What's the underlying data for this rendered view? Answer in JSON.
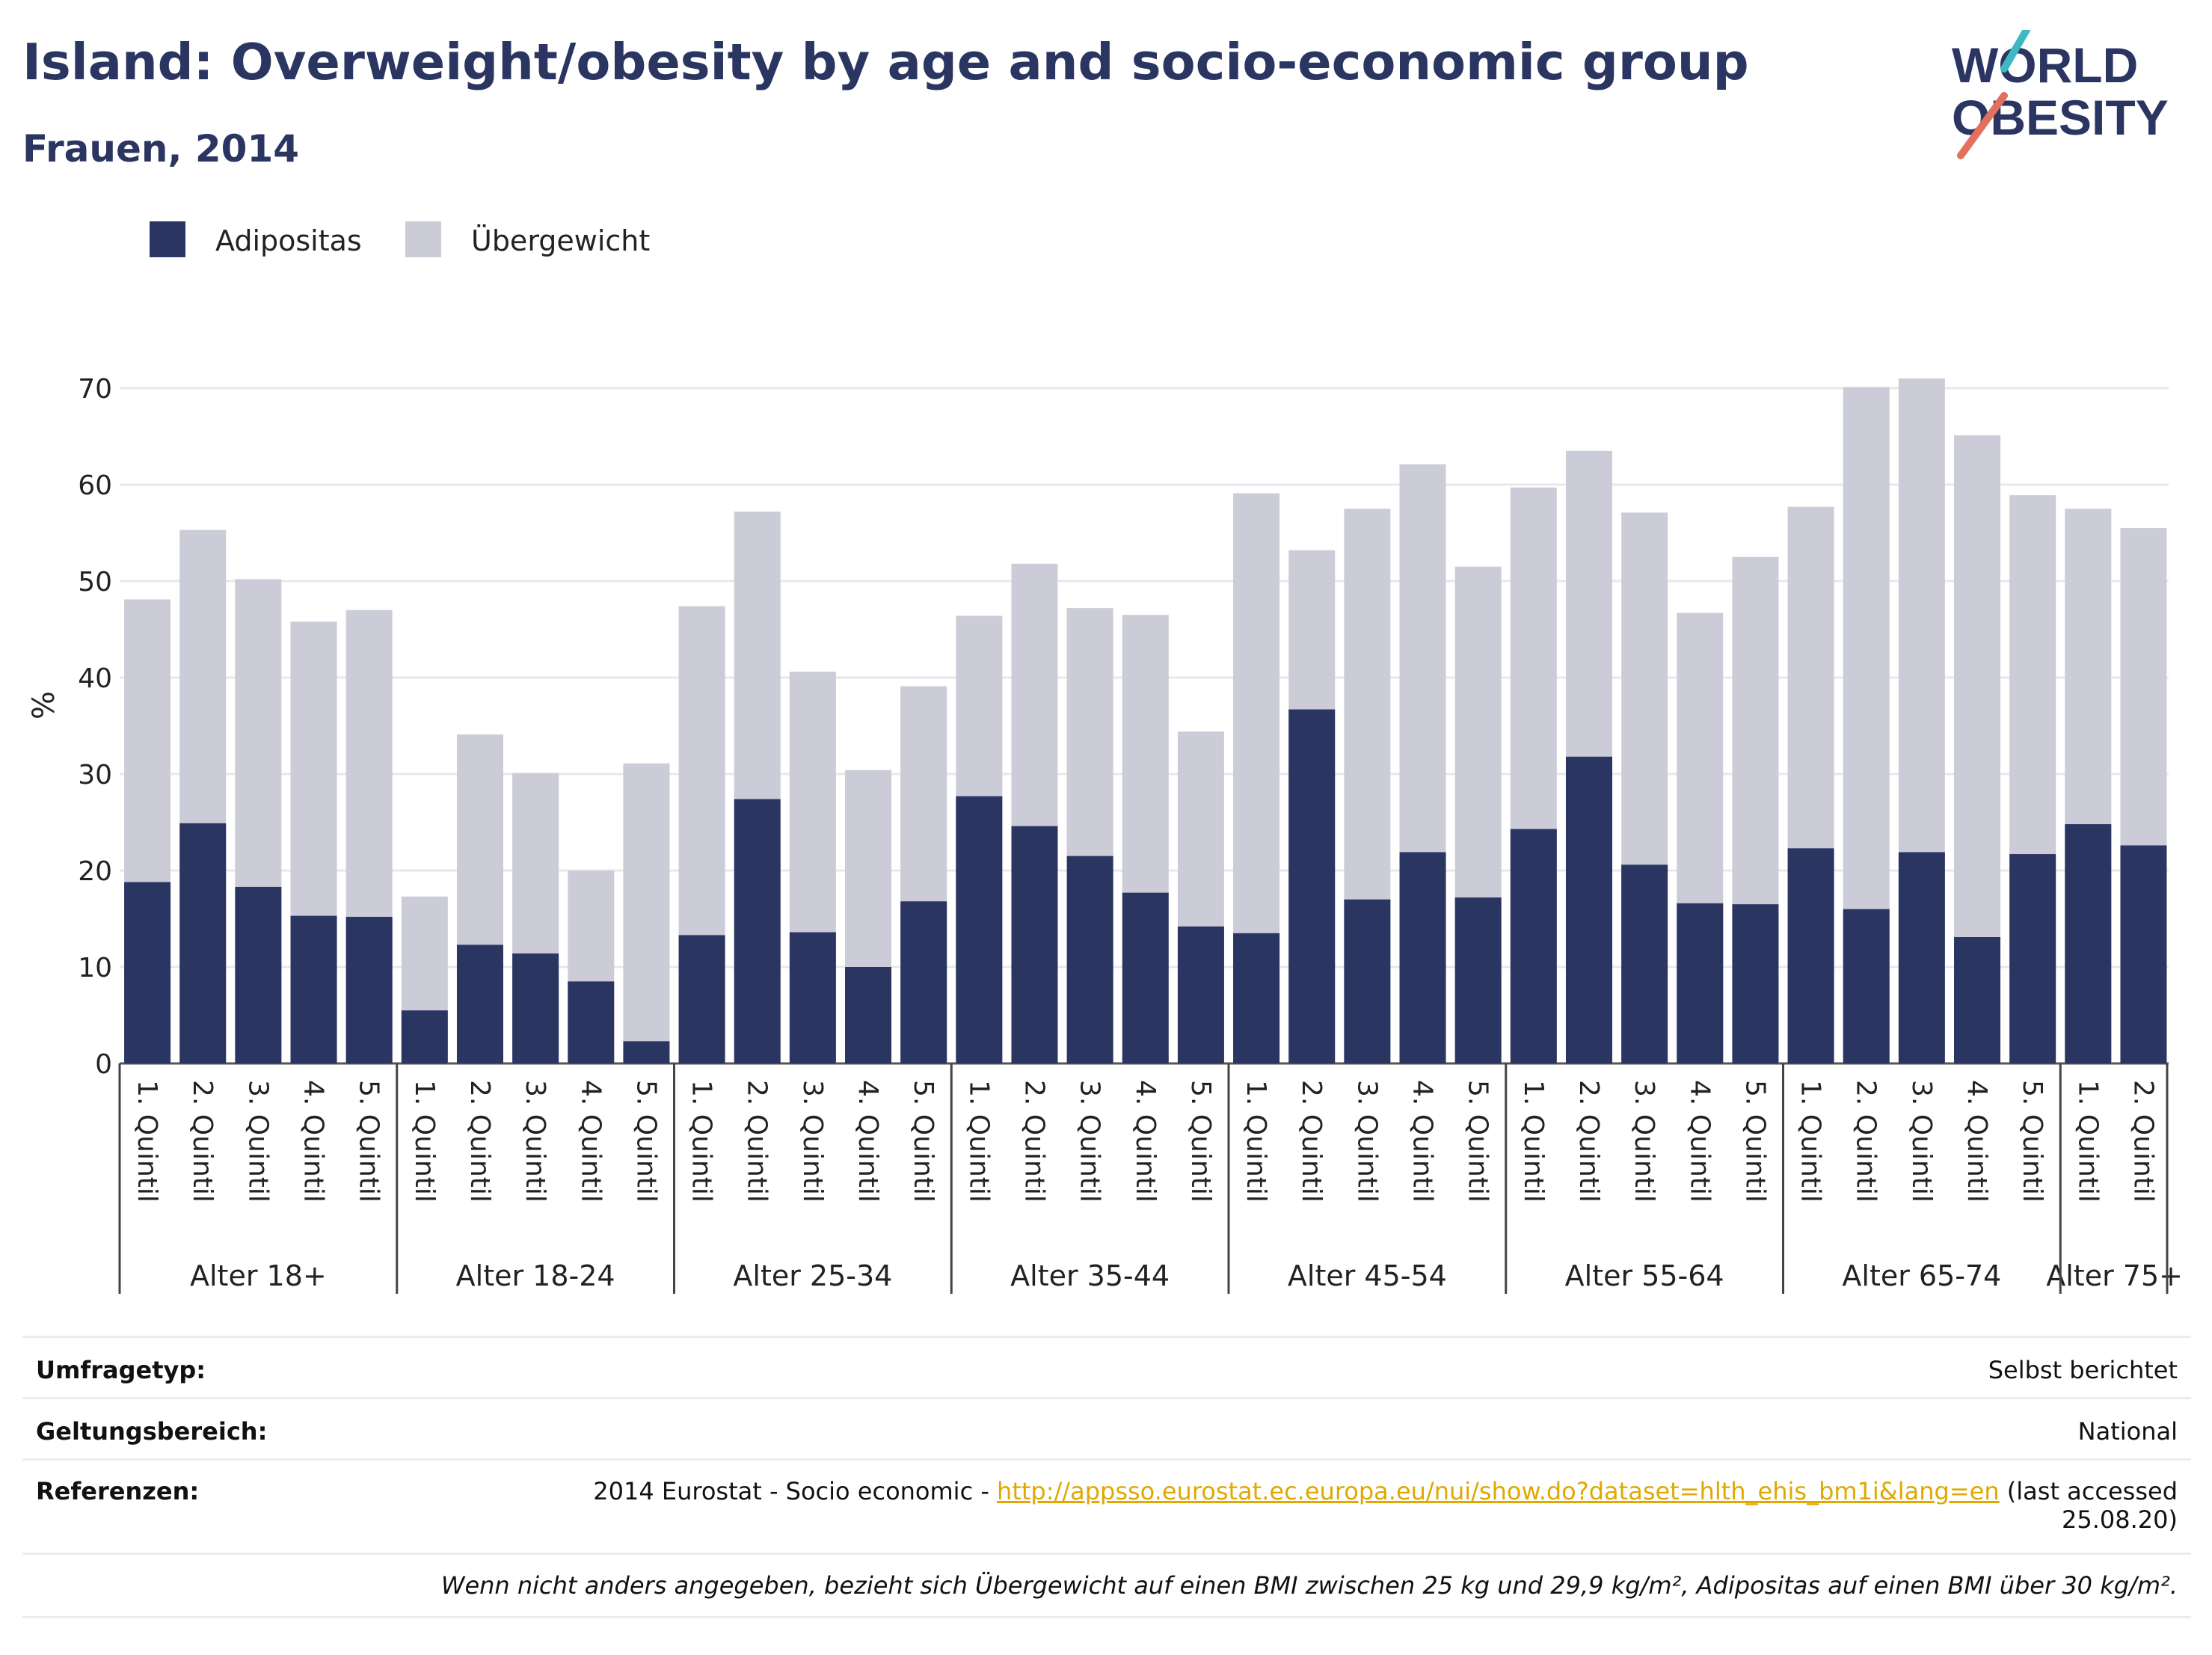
{
  "header": {
    "title": "Island: Overweight/obesity by age and socio-economic group",
    "subtitle": "Frauen, 2014"
  },
  "logo": {
    "line1": "WORLD",
    "line2": "OBESITY"
  },
  "legend": [
    {
      "label": "Adipositas",
      "color": "#2a3561"
    },
    {
      "label": "Übergewicht",
      "color": "#cbccd7"
    }
  ],
  "chart_data": {
    "type": "bar",
    "stacked": false,
    "title": "Island: Overweight/obesity by age and socio-economic group",
    "subtitle": "Frauen, 2014",
    "ylabel": "%",
    "ylim": [
      0,
      72
    ],
    "yticks": [
      0,
      10,
      20,
      30,
      40,
      50,
      60,
      70
    ],
    "grid": true,
    "legend_position": "top-left",
    "groups": [
      {
        "label": "Alter 18+",
        "categories": [
          "1. Quintil",
          "2. Quintil",
          "3. Quintil",
          "4. Quintil",
          "5. Quintil"
        ]
      },
      {
        "label": "Alter 18-24",
        "categories": [
          "1. Quintil",
          "2. Quintil",
          "3. Quintil",
          "4. Quintil",
          "5. Quintil"
        ]
      },
      {
        "label": "Alter 25-34",
        "categories": [
          "1. Quintil",
          "2. Quintil",
          "3. Quintil",
          "4. Quintil",
          "5. Quintil"
        ]
      },
      {
        "label": "Alter 35-44",
        "categories": [
          "1. Quintil",
          "2. Quintil",
          "3. Quintil",
          "4. Quintil",
          "5. Quintil"
        ]
      },
      {
        "label": "Alter 45-54",
        "categories": [
          "1. Quintil",
          "2. Quintil",
          "3. Quintil",
          "4. Quintil",
          "5. Quintil"
        ]
      },
      {
        "label": "Alter 55-64",
        "categories": [
          "1. Quintil",
          "2. Quintil",
          "3. Quintil",
          "4. Quintil",
          "5. Quintil"
        ]
      },
      {
        "label": "Alter 65-74",
        "categories": [
          "1. Quintil",
          "2. Quintil",
          "3. Quintil",
          "4. Quintil",
          "5. Quintil"
        ]
      },
      {
        "label": "Alter 75+",
        "categories": [
          "1. Quintil",
          "2. Quintil"
        ]
      }
    ],
    "series": [
      {
        "name": "Übergewicht",
        "color": "#cbccd7",
        "values": [
          48.1,
          55.3,
          50.2,
          45.8,
          47.0,
          17.3,
          34.1,
          30.1,
          20.0,
          31.1,
          47.4,
          57.2,
          40.6,
          30.4,
          39.1,
          46.4,
          51.8,
          47.2,
          46.5,
          34.4,
          59.1,
          53.2,
          57.5,
          62.1,
          51.5,
          59.7,
          63.5,
          57.1,
          46.7,
          52.5,
          57.7,
          70.1,
          71.0,
          65.1,
          58.9,
          57.5,
          55.5
        ]
      },
      {
        "name": "Adipositas",
        "color": "#2a3561",
        "values": [
          18.8,
          24.9,
          18.3,
          15.3,
          15.2,
          5.5,
          12.3,
          11.4,
          8.5,
          2.3,
          13.3,
          27.4,
          13.6,
          10.0,
          16.8,
          27.7,
          24.6,
          21.5,
          17.7,
          14.2,
          13.5,
          36.7,
          17.0,
          21.9,
          17.2,
          24.3,
          31.8,
          20.6,
          16.6,
          16.5,
          22.3,
          16.0,
          21.9,
          13.1,
          21.7,
          24.8,
          22.6
        ]
      }
    ]
  },
  "info": {
    "survey_type_label": "Umfragetyp:",
    "survey_type_value": "Selbst berichtet",
    "coverage_label": "Geltungsbereich:",
    "coverage_value": "National",
    "references_label": "Referenzen:",
    "references_prefix": "2014 Eurostat - Socio economic - ",
    "references_link": "http://appsso.eurostat.ec.europa.eu/nui/show.do?dataset=hlth_ehis_bm1i&lang=en",
    "references_suffix": " (last accessed",
    "references_date": "25.08.20)",
    "note": "Wenn nicht anders angegeben, bezieht sich Übergewicht auf einen BMI zwischen 25 kg und 29,9 kg/m², Adipositas auf einen BMI über 30 kg/m²."
  }
}
